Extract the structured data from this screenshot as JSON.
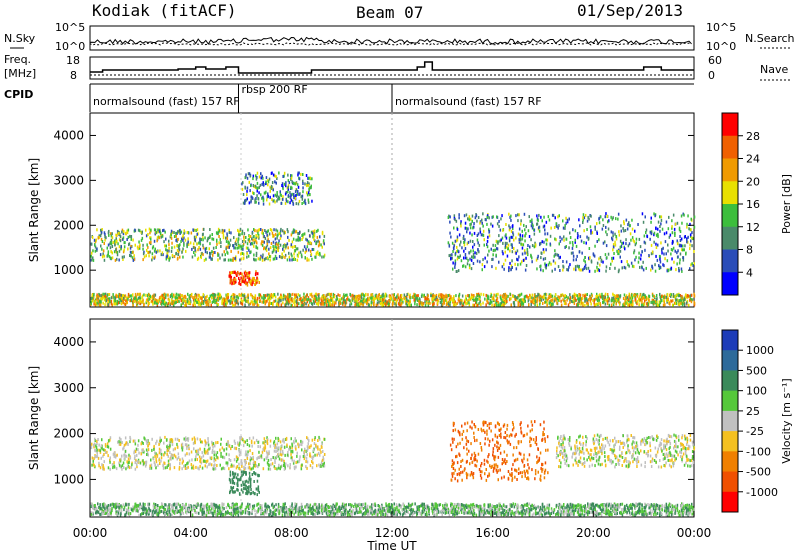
{
  "header": {
    "station": "Kodiak (fitACF)",
    "beam": "Beam 07",
    "date": "01/Sep/2013"
  },
  "noise_panel": {
    "left_label": "N.Sky",
    "right_label": "N.Search",
    "left_ticks": [
      "10^5",
      "10^0"
    ],
    "right_ticks": [
      "10^5",
      "10^0"
    ]
  },
  "freq_panel": {
    "left_label_1": "Freq.",
    "left_label_2": "[MHz]",
    "right_label": "Nave",
    "left_ticks": [
      "18",
      "8"
    ],
    "right_ticks": [
      "60",
      "0"
    ]
  },
  "cpid": {
    "label": "CPID",
    "segments": [
      {
        "text": "normalsound (fast) 157 RF",
        "start_h": 0,
        "end_h": 5.9
      },
      {
        "text": "rbsp 200 RF",
        "start_h": 5.9,
        "end_h": 12.0
      },
      {
        "text": "normalsound (fast) 157 RF",
        "start_h": 12.0,
        "end_h": 24.0
      }
    ]
  },
  "chart_data": [
    {
      "type": "heatmap",
      "name": "power",
      "ylabel": "Slant Range [km]",
      "xlabel": "Time UT",
      "xlim": [
        0,
        24
      ],
      "ylim": [
        180,
        4500
      ],
      "x_ticks": [
        "00:00",
        "04:00",
        "08:00",
        "12:00",
        "16:00",
        "20:00",
        "00:00"
      ],
      "y_ticks": [
        "1000",
        "2000",
        "3000",
        "4000"
      ],
      "colorbar": {
        "label": "Power [dB]",
        "ticks": [
          "4",
          "8",
          "12",
          "16",
          "20",
          "24",
          "28"
        ],
        "colors": [
          "#0000ff",
          "#2a4db8",
          "#4a8a6a",
          "#3cbe3c",
          "#e8e000",
          "#f09a00",
          "#f06000",
          "#ff0000"
        ]
      },
      "echo_regions": [
        {
          "t0": 0.0,
          "t1": 9.3,
          "r0": 1250,
          "r1": 1950,
          "value": 12
        },
        {
          "t0": 5.5,
          "t1": 6.7,
          "r0": 700,
          "r1": 1000,
          "value": 24
        },
        {
          "t0": 6.0,
          "t1": 8.8,
          "r0": 2500,
          "r1": 3200,
          "value": 8
        },
        {
          "t0": 14.2,
          "t1": 24.0,
          "r0": 1000,
          "r1": 2300,
          "value": 8
        },
        {
          "t0": 0.0,
          "t1": 24.0,
          "r0": 250,
          "r1": 500,
          "value": 16
        }
      ]
    },
    {
      "type": "heatmap",
      "name": "velocity",
      "ylabel": "Slant Range [km]",
      "xlabel": "Time UT",
      "xlim": [
        0,
        24
      ],
      "ylim": [
        180,
        4500
      ],
      "x_ticks": [
        "00:00",
        "04:00",
        "08:00",
        "12:00",
        "16:00",
        "20:00",
        "00:00"
      ],
      "y_ticks": [
        "1000",
        "2000",
        "3000",
        "4000"
      ],
      "colorbar": {
        "label": "Velocity [m s⁻¹]",
        "ticks": [
          "1000",
          "500",
          "100",
          "25",
          "-25",
          "-100",
          "-500",
          "-1000"
        ],
        "colors": [
          "#1d3cb8",
          "#2d6a9a",
          "#3a8a5a",
          "#55c83a",
          "#c0c0c0",
          "#f4c020",
          "#f08000",
          "#f05000",
          "#ff0000"
        ]
      },
      "echo_regions": [
        {
          "t0": 0.0,
          "t1": 9.3,
          "r0": 1250,
          "r1": 1950,
          "value": 0
        },
        {
          "t0": 5.5,
          "t1": 6.7,
          "r0": 700,
          "r1": 1200,
          "value": 200
        },
        {
          "t0": 14.3,
          "t1": 18.2,
          "r0": 1000,
          "r1": 2300,
          "value": -300
        },
        {
          "t0": 18.5,
          "t1": 24.0,
          "r0": 1300,
          "r1": 2000,
          "value": 0
        },
        {
          "t0": 0.0,
          "t1": 24.0,
          "r0": 250,
          "r1": 500,
          "value": 50
        }
      ]
    }
  ]
}
